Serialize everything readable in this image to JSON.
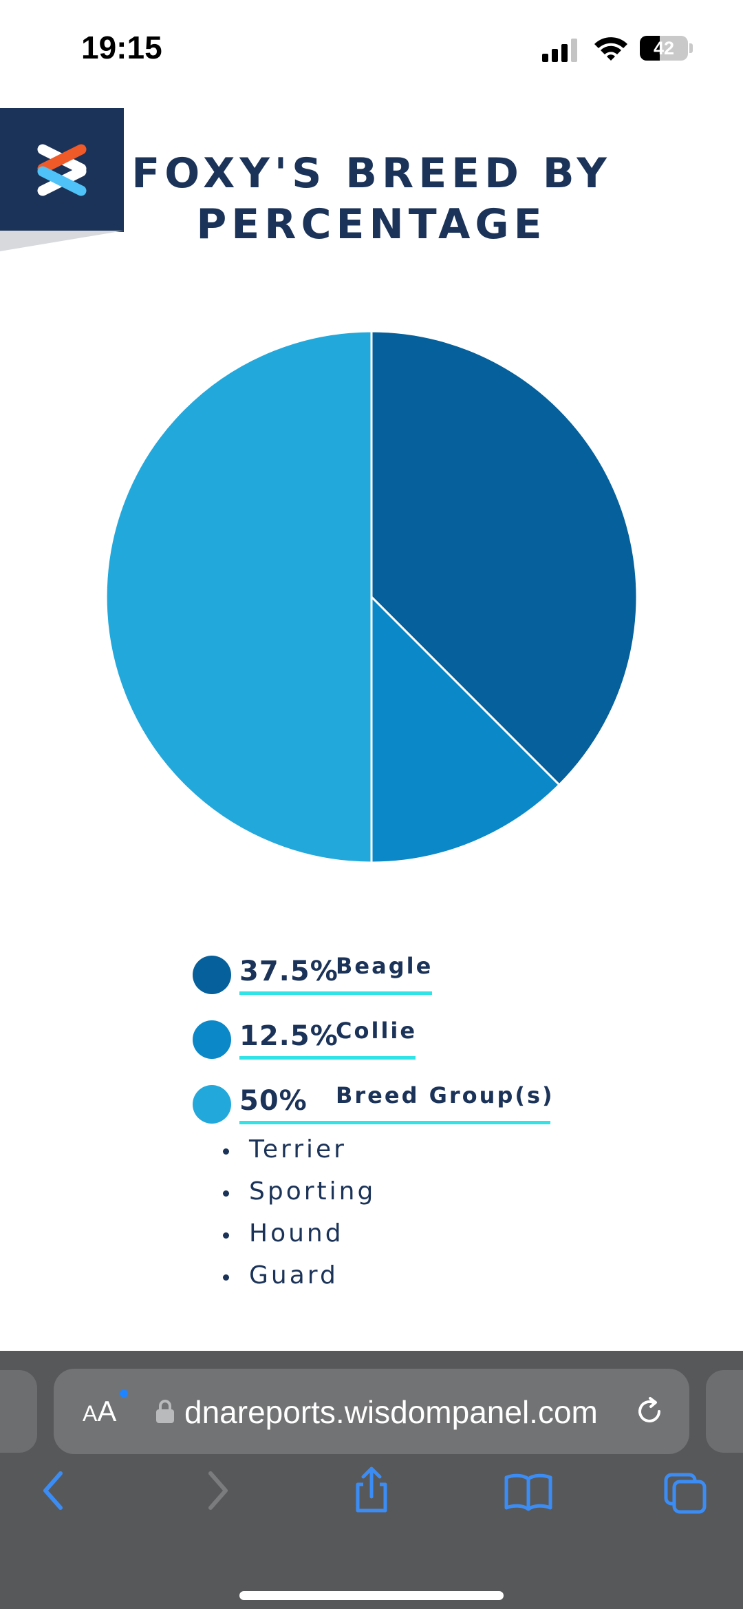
{
  "status_bar": {
    "time": "19:15",
    "battery_level": "42",
    "battery_fraction": 0.42,
    "icons": [
      "signal-icon",
      "wifi-icon",
      "battery-icon"
    ]
  },
  "header": {
    "logo_icon": "wisdom-panel-logo",
    "title": "FOXY'S BREED BY PERCENTAGE"
  },
  "chart_data": {
    "type": "pie",
    "title": "FOXY'S BREED BY PERCENTAGE",
    "slices": [
      {
        "label": "Beagle",
        "value": 37.5,
        "color": "#05609b"
      },
      {
        "label": "Collie",
        "value": 12.5,
        "color": "#0a88c7"
      },
      {
        "label": "Breed Group(s)",
        "value": 50,
        "color": "#23a8dc"
      }
    ],
    "start_angle": "12 o'clock",
    "direction": "clockwise"
  },
  "legend": {
    "items": [
      {
        "pct": "37.5%",
        "label": "Beagle",
        "color": "#05609b"
      },
      {
        "pct": "12.5%",
        "label": "Collie",
        "color": "#0a88c7"
      },
      {
        "pct": "50%",
        "label": "Breed Group(s)",
        "color": "#23a8dc"
      }
    ],
    "underline_color": "#2fe3e6",
    "groups": [
      "Terrier",
      "Sporting",
      "Hound",
      "Guard"
    ]
  },
  "browser": {
    "text_size_label_small": "A",
    "text_size_label_big": "A",
    "url": "dnareports.wisdompanel.com",
    "icons": [
      "lock-icon",
      "reload-icon",
      "back-icon",
      "forward-icon",
      "share-icon",
      "bookmarks-icon",
      "tabs-icon"
    ],
    "accent": "#3b8df5"
  },
  "colors": {
    "navy": "#1b3358",
    "logo_orange": "#f05a28",
    "logo_blue": "#4fc3f7"
  }
}
